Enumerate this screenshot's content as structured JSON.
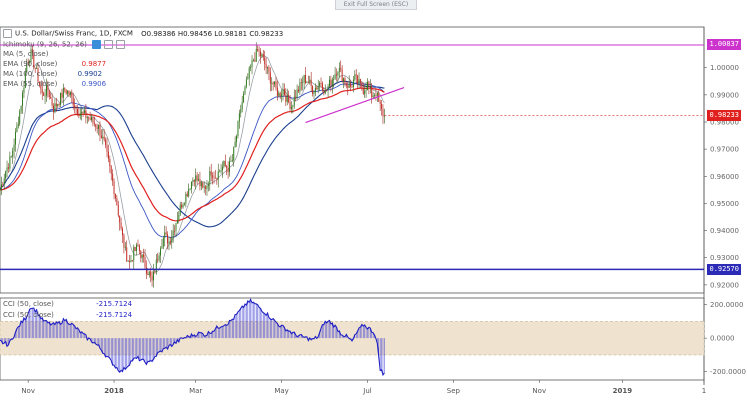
{
  "toolbar": {
    "exit_label": "Exit Full Screen (ESC)"
  },
  "header": {
    "symbol": "U.S. Dollar/Swiss Franc, 1D, FXCM",
    "ohlc": "O0.98386 H0.98456 L0.98181 C0.98233"
  },
  "indicators": [
    {
      "label": "Ichimoku (9, 26, 52, 26)",
      "value": "",
      "color": "#3a8fd8"
    },
    {
      "label": "MA (5, close)",
      "value": "",
      "color": "#9aa0a6"
    },
    {
      "label": "EMA (90, close)",
      "value": "0.9877",
      "color": "#e0201e"
    },
    {
      "label": "MA (100, close)",
      "value": "0.9902",
      "color": "#1b3f8f"
    },
    {
      "label": "EMA (55, close)",
      "value": "0.9906",
      "color": "#3b56c4"
    }
  ],
  "cci_legend": [
    {
      "label": "CCI (50, close)",
      "value": "-215.7124"
    },
    {
      "label": "CCI (50, close)",
      "value": "-215.7124"
    }
  ],
  "price_tags": [
    {
      "value": "1.00837",
      "color": "#cc33cc"
    },
    {
      "value": "0.98233",
      "color": "#e0201e"
    },
    {
      "value": "0.92570",
      "color": "#2b2bb8"
    }
  ],
  "chart_data": [
    {
      "type": "candlestick",
      "title": "U.S. Dollar/Swiss Franc, 1D, FXCM",
      "ylim": [
        0.917,
        1.015
      ],
      "y_ticks": [
        0.92,
        0.93,
        0.94,
        0.95,
        0.96,
        0.97,
        0.98,
        0.99,
        1.0
      ],
      "y_tick_labels": [
        "0.92000",
        "0.93000",
        "0.94000",
        "0.95000",
        "0.96000",
        "0.97000",
        "0.98000",
        "0.99000",
        "1.00000"
      ],
      "x_ticks": [
        "Nov",
        "2018",
        "Mar",
        "May",
        "Jul",
        "Sep",
        "Nov",
        "2019",
        "1"
      ],
      "x_tick_days": [
        20,
        81,
        139,
        200,
        261,
        322,
        383,
        442,
        500
      ],
      "close_path": [
        [
          0,
          0.955
        ],
        [
          4,
          0.962
        ],
        [
          8,
          0.967
        ],
        [
          12,
          0.978
        ],
        [
          16,
          0.99
        ],
        [
          19,
          1.002
        ],
        [
          22,
          1.005
        ],
        [
          26,
          0.998
        ],
        [
          30,
          0.99
        ],
        [
          34,
          0.992
        ],
        [
          38,
          0.985
        ],
        [
          42,
          0.988
        ],
        [
          46,
          0.992
        ],
        [
          50,
          0.99
        ],
        [
          54,
          0.985
        ],
        [
          58,
          0.983
        ],
        [
          62,
          0.982
        ],
        [
          66,
          0.98
        ],
        [
          70,
          0.978
        ],
        [
          74,
          0.972
        ],
        [
          77,
          0.965
        ],
        [
          80,
          0.958
        ],
        [
          83,
          0.95
        ],
        [
          86,
          0.94
        ],
        [
          89,
          0.932
        ],
        [
          92,
          0.928
        ],
        [
          95,
          0.932
        ],
        [
          98,
          0.934
        ],
        [
          101,
          0.93
        ],
        [
          104,
          0.926
        ],
        [
          106,
          0.924
        ],
        [
          108,
          0.921
        ],
        [
          111,
          0.928
        ],
        [
          114,
          0.935
        ],
        [
          117,
          0.938
        ],
        [
          120,
          0.936
        ],
        [
          123,
          0.94
        ],
        [
          126,
          0.945
        ],
        [
          129,
          0.95
        ],
        [
          132,
          0.953
        ],
        [
          135,
          0.957
        ],
        [
          138,
          0.96
        ],
        [
          141,
          0.958
        ],
        [
          144,
          0.955
        ],
        [
          147,
          0.957
        ],
        [
          150,
          0.962
        ],
        [
          153,
          0.96
        ],
        [
          156,
          0.962
        ],
        [
          159,
          0.964
        ],
        [
          162,
          0.963
        ],
        [
          165,
          0.966
        ],
        [
          168,
          0.975
        ],
        [
          171,
          0.985
        ],
        [
          174,
          0.992
        ],
        [
          177,
          0.998
        ],
        [
          180,
          1.003
        ],
        [
          183,
          1.006
        ],
        [
          186,
          1.004
        ],
        [
          189,
          1.0
        ],
        [
          192,
          0.996
        ],
        [
          195,
          0.993
        ],
        [
          198,
          0.99
        ],
        [
          201,
          0.992
        ],
        [
          204,
          0.988
        ],
        [
          207,
          0.986
        ],
        [
          210,
          0.99
        ],
        [
          213,
          0.993
        ],
        [
          216,
          0.996
        ],
        [
          219,
          0.995
        ],
        [
          222,
          0.992
        ],
        [
          225,
          0.993
        ],
        [
          228,
          0.995
        ],
        [
          231,
          0.991
        ],
        [
          234,
          0.994
        ],
        [
          237,
          0.997
        ],
        [
          240,
          1.0
        ],
        [
          243,
          0.997
        ],
        [
          246,
          0.994
        ],
        [
          249,
          0.993
        ],
        [
          252,
          0.996
        ],
        [
          255,
          0.994
        ],
        [
          258,
          0.992
        ],
        [
          261,
          0.994
        ],
        [
          264,
          0.99
        ],
        [
          267,
          0.991
        ],
        [
          269,
          0.987
        ],
        [
          271,
          0.984
        ],
        [
          273,
          0.982
        ]
      ],
      "overlays": [
        {
          "name": "MA (5, close)",
          "color": "#9aa0a6"
        },
        {
          "name": "EMA (90, close)",
          "color": "#e0201e",
          "last": 0.9877
        },
        {
          "name": "MA (100, close)",
          "color": "#1b3f8f",
          "last": 0.9902
        },
        {
          "name": "EMA (55, close)",
          "color": "#3b56c4",
          "last": 0.9906
        }
      ],
      "horizontal_lines": [
        {
          "value": 1.00837,
          "color": "#cc33cc"
        },
        {
          "value": 0.9257,
          "color": "#2b2bb8"
        }
      ],
      "trendline": {
        "from": [
          217,
          0.9798
        ],
        "to": [
          287,
          0.9927
        ],
        "color": "#cc33cc"
      }
    },
    {
      "type": "area",
      "title": "CCI (50, close)",
      "ylim": [
        -250,
        240
      ],
      "y_ticks": [
        200,
        0,
        -200
      ],
      "y_tick_labels": [
        "200.0000",
        "0.0000",
        "-200.0000"
      ],
      "band": [
        -100,
        100
      ],
      "series": [
        {
          "name": "CCI (50, close)",
          "last": -215.7124,
          "points": [
            [
              0,
              -20
            ],
            [
              6,
              -40
            ],
            [
              10,
              20
            ],
            [
              14,
              80
            ],
            [
              18,
              120
            ],
            [
              22,
              190
            ],
            [
              26,
              160
            ],
            [
              30,
              110
            ],
            [
              34,
              90
            ],
            [
              38,
              80
            ],
            [
              42,
              90
            ],
            [
              46,
              110
            ],
            [
              50,
              90
            ],
            [
              54,
              60
            ],
            [
              58,
              30
            ],
            [
              62,
              0
            ],
            [
              66,
              -20
            ],
            [
              70,
              -50
            ],
            [
              74,
              -90
            ],
            [
              78,
              -130
            ],
            [
              82,
              -170
            ],
            [
              86,
              -200
            ],
            [
              90,
              -170
            ],
            [
              94,
              -130
            ],
            [
              98,
              -120
            ],
            [
              102,
              -140
            ],
            [
              106,
              -150
            ],
            [
              110,
              -110
            ],
            [
              114,
              -80
            ],
            [
              118,
              -60
            ],
            [
              122,
              -40
            ],
            [
              126,
              -20
            ],
            [
              130,
              0
            ],
            [
              134,
              10
            ],
            [
              138,
              20
            ],
            [
              142,
              30
            ],
            [
              146,
              20
            ],
            [
              150,
              40
            ],
            [
              154,
              60
            ],
            [
              158,
              80
            ],
            [
              162,
              90
            ],
            [
              166,
              120
            ],
            [
              170,
              160
            ],
            [
              174,
              200
            ],
            [
              178,
              220
            ],
            [
              182,
              200
            ],
            [
              186,
              170
            ],
            [
              190,
              140
            ],
            [
              194,
              110
            ],
            [
              198,
              80
            ],
            [
              202,
              60
            ],
            [
              206,
              40
            ],
            [
              210,
              20
            ],
            [
              214,
              10
            ],
            [
              218,
              0
            ],
            [
              222,
              -10
            ],
            [
              226,
              10
            ],
            [
              230,
              90
            ],
            [
              234,
              100
            ],
            [
              238,
              70
            ],
            [
              242,
              30
            ],
            [
              246,
              10
            ],
            [
              250,
              -20
            ],
            [
              254,
              40
            ],
            [
              258,
              80
            ],
            [
              262,
              60
            ],
            [
              266,
              30
            ],
            [
              268,
              -40
            ],
            [
              270,
              -180
            ],
            [
              272,
              -215
            ]
          ]
        }
      ]
    }
  ]
}
